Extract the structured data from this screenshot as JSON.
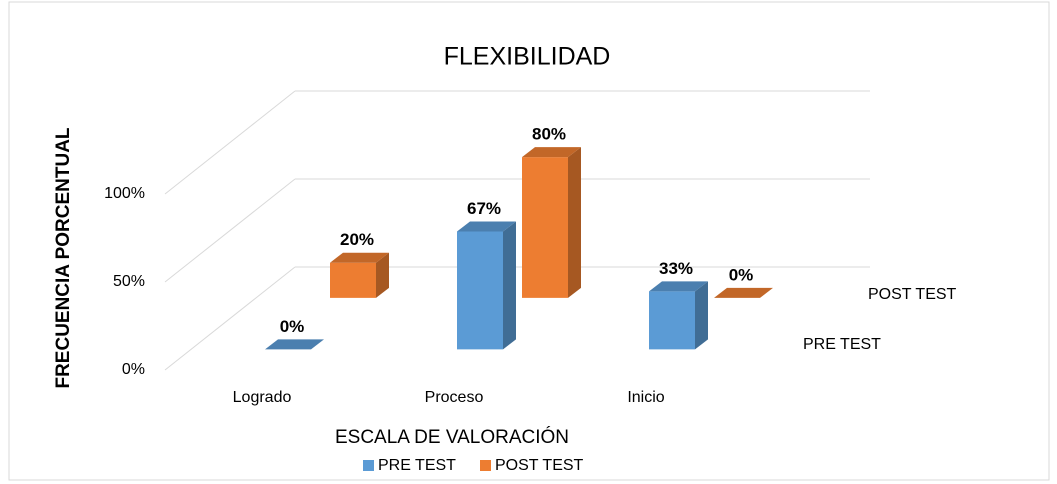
{
  "chart_data": {
    "type": "bar3d",
    "title": "FLEXIBILIDAD",
    "x_label": "ESCALA DE VALORACIÓN",
    "y_label": "FRECUENCIA PORCENTUAL",
    "categories": [
      "Logrado",
      "Proceso",
      "Inicio"
    ],
    "series": [
      {
        "name": "PRE TEST",
        "color": "#5b9bd5",
        "values": [
          0,
          67,
          33
        ],
        "value_labels": [
          "0%",
          "67%",
          "33%"
        ]
      },
      {
        "name": "POST TEST",
        "color": "#ed7d31",
        "values": [
          20,
          80,
          0
        ],
        "value_labels": [
          "20%",
          "80%",
          "0%"
        ]
      }
    ],
    "ylim": [
      0,
      100
    ],
    "yticks": [
      {
        "value": 0,
        "label": "0%"
      },
      {
        "value": 50,
        "label": "50%"
      },
      {
        "value": 100,
        "label": "100%"
      }
    ],
    "grid": true,
    "legend": "bottom"
  }
}
